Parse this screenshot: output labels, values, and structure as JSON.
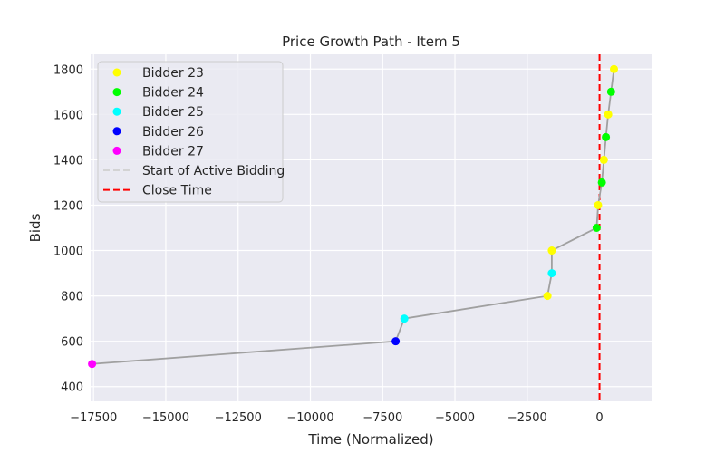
{
  "chart_data": {
    "type": "scatter",
    "title": "Price Growth Path - Item 5",
    "xlabel": "Time (Normalized)",
    "ylabel": "Bids",
    "xlim": [
      -17600,
      1800
    ],
    "ylim": [
      335,
      1865
    ],
    "x_ticks": [
      -17500,
      -15000,
      -12500,
      -10000,
      -7500,
      -5000,
      -2500,
      0
    ],
    "x_tick_labels": [
      "−17500",
      "−15000",
      "−12500",
      "−10000",
      "−7500",
      "−5000",
      "−2500",
      "0"
    ],
    "y_ticks": [
      400,
      600,
      800,
      1000,
      1200,
      1400,
      1600,
      1800
    ],
    "y_tick_labels": [
      "400",
      "600",
      "800",
      "1000",
      "1200",
      "1400",
      "1600",
      "1800"
    ],
    "grid": true,
    "legend_placement": "top-left",
    "background_color": "#eaeaf2",
    "path_line": {
      "color": "#a0a0a0",
      "points": [
        {
          "x": -17550,
          "y": 500
        },
        {
          "x": -7050,
          "y": 600
        },
        {
          "x": -6750,
          "y": 700
        },
        {
          "x": -1800,
          "y": 800
        },
        {
          "x": -1650,
          "y": 900
        },
        {
          "x": -1650,
          "y": 1000
        },
        {
          "x": -100,
          "y": 1100
        },
        {
          "x": -50,
          "y": 1200
        },
        {
          "x": 80,
          "y": 1300
        },
        {
          "x": 150,
          "y": 1400
        },
        {
          "x": 220,
          "y": 1500
        },
        {
          "x": 300,
          "y": 1600
        },
        {
          "x": 400,
          "y": 1700
        },
        {
          "x": 500,
          "y": 1800
        }
      ]
    },
    "series": [
      {
        "name": "Bidder 23",
        "color": "#ffff00",
        "points": [
          {
            "x": -1800,
            "y": 800
          },
          {
            "x": -1650,
            "y": 1000
          },
          {
            "x": -50,
            "y": 1200
          },
          {
            "x": 150,
            "y": 1400
          },
          {
            "x": 300,
            "y": 1600
          },
          {
            "x": 500,
            "y": 1800
          }
        ]
      },
      {
        "name": "Bidder 24",
        "color": "#00ff00",
        "points": [
          {
            "x": -100,
            "y": 1100
          },
          {
            "x": 80,
            "y": 1300
          },
          {
            "x": 220,
            "y": 1500
          },
          {
            "x": 400,
            "y": 1700
          }
        ]
      },
      {
        "name": "Bidder 25",
        "color": "#00ffff",
        "points": [
          {
            "x": -6750,
            "y": 700
          },
          {
            "x": -1650,
            "y": 900
          }
        ]
      },
      {
        "name": "Bidder 26",
        "color": "#0000ff",
        "points": [
          {
            "x": -7050,
            "y": 600
          }
        ]
      },
      {
        "name": "Bidder 27",
        "color": "#ff00ff",
        "points": [
          {
            "x": -17550,
            "y": 500
          }
        ]
      }
    ],
    "vlines": [
      {
        "name": "Start of Active Bidding",
        "color": "#d3d3d3",
        "style": "dashed",
        "x": null
      },
      {
        "name": "Close Time",
        "color": "#ff0000",
        "style": "dashed",
        "x": 0
      }
    ]
  }
}
